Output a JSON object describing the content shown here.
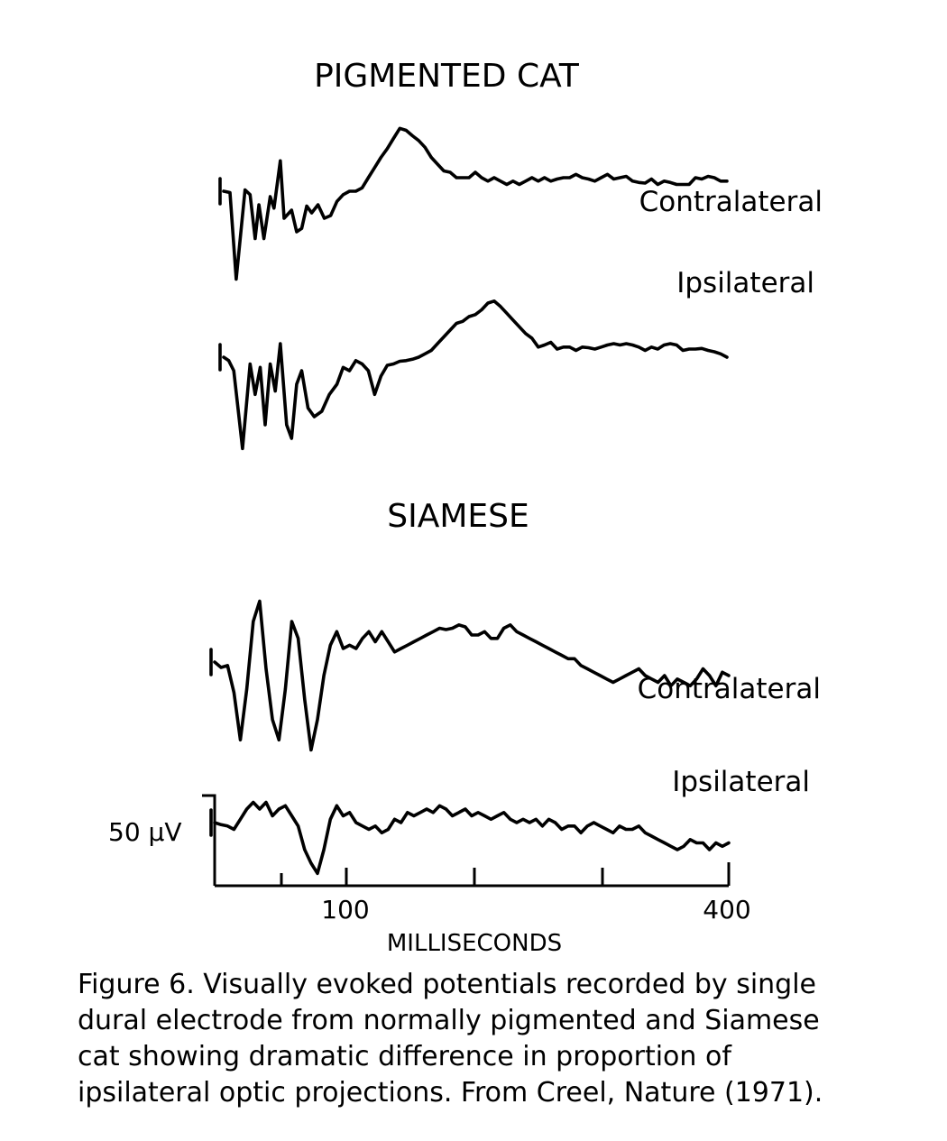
{
  "chart_data": [
    {
      "type": "line",
      "title": "PIGMENTED CAT",
      "xlabel": "MILLISECONDS",
      "xlim": [
        0,
        400
      ],
      "series": [
        {
          "name": "Contralateral",
          "x": [
            0,
            5,
            10,
            17,
            21,
            25,
            28,
            32,
            37,
            40,
            45,
            48,
            54,
            58,
            62,
            66,
            70,
            75,
            80,
            85,
            90,
            95,
            100,
            105,
            110,
            115,
            120,
            125,
            130,
            135,
            140,
            145,
            150,
            155,
            160,
            165,
            170,
            175,
            180,
            185,
            190,
            195,
            200,
            205,
            210,
            215,
            220,
            225,
            230,
            235,
            240,
            245,
            250,
            255,
            260,
            265,
            270,
            275,
            280,
            285,
            290,
            295,
            300,
            305,
            310,
            315,
            320,
            325,
            330,
            335,
            340,
            345,
            350,
            355,
            360,
            365,
            370,
            375,
            380,
            385,
            390,
            395,
            400
          ],
          "values": [
            0,
            -2,
            -130,
            2,
            -5,
            -70,
            -20,
            -70,
            -8,
            -25,
            45,
            -40,
            -28,
            -60,
            -55,
            -22,
            -32,
            -20,
            -40,
            -36,
            -15,
            -5,
            0,
            0,
            5,
            20,
            35,
            50,
            63,
            78,
            93,
            90,
            82,
            75,
            65,
            50,
            40,
            30,
            28,
            20,
            20,
            20,
            28,
            20,
            15,
            20,
            15,
            10,
            15,
            10,
            15,
            20,
            15,
            20,
            15,
            18,
            20,
            20,
            25,
            20,
            18,
            15,
            20,
            25,
            18,
            20,
            22,
            15,
            13,
            12,
            18,
            10,
            15,
            13,
            10,
            10,
            10,
            20,
            18,
            22,
            20,
            15,
            15
          ]
        },
        {
          "name": "Ipsilateral",
          "x": [
            0,
            4,
            8,
            15,
            21,
            25,
            29,
            33,
            37,
            41,
            45,
            50,
            54,
            58,
            62,
            67,
            72,
            78,
            84,
            90,
            95,
            100,
            105,
            110,
            115,
            120,
            125,
            130,
            135,
            140,
            145,
            150,
            155,
            160,
            165,
            170,
            175,
            180,
            185,
            190,
            195,
            200,
            205,
            210,
            215,
            220,
            225,
            230,
            235,
            240,
            245,
            250,
            255,
            260,
            265,
            270,
            275,
            280,
            285,
            290,
            295,
            300,
            305,
            310,
            315,
            320,
            325,
            330,
            335,
            340,
            345,
            350,
            355,
            360,
            365,
            370,
            375,
            380,
            385,
            390,
            395,
            400
          ],
          "values": [
            0,
            -5,
            -20,
            -135,
            -10,
            -55,
            -15,
            -100,
            -10,
            -50,
            20,
            -100,
            -120,
            -40,
            -20,
            -75,
            -88,
            -80,
            -55,
            -40,
            -15,
            -20,
            -5,
            -10,
            -20,
            -55,
            -28,
            -12,
            -10,
            -6,
            -5,
            -3,
            0,
            5,
            10,
            20,
            30,
            40,
            50,
            53,
            60,
            63,
            70,
            80,
            83,
            75,
            65,
            55,
            45,
            35,
            28,
            15,
            18,
            22,
            12,
            15,
            15,
            10,
            15,
            14,
            12,
            15,
            18,
            20,
            18,
            20,
            18,
            15,
            10,
            15,
            12,
            18,
            20,
            18,
            10,
            12,
            12,
            13,
            10,
            8,
            5,
            0
          ]
        }
      ]
    },
    {
      "type": "line",
      "title": "SIAMESE",
      "xlabel": "MILLISECONDS",
      "xlim": [
        0,
        400
      ],
      "xticks": [
        100,
        400
      ],
      "tick_labels": [
        "100",
        "400"
      ],
      "scale_bar": "50 µV",
      "series": [
        {
          "name": "Contralateral",
          "x": [
            0,
            5,
            10,
            15,
            20,
            25,
            30,
            35,
            40,
            45,
            50,
            55,
            60,
            65,
            70,
            75,
            80,
            85,
            90,
            95,
            100,
            105,
            110,
            115,
            120,
            125,
            130,
            135,
            140,
            145,
            150,
            155,
            160,
            165,
            170,
            175,
            180,
            185,
            190,
            195,
            200,
            205,
            210,
            215,
            220,
            225,
            230,
            235,
            240,
            245,
            250,
            255,
            260,
            265,
            270,
            275,
            280,
            285,
            290,
            295,
            300,
            305,
            310,
            315,
            320,
            325,
            330,
            335,
            340,
            345,
            350,
            355,
            360,
            365,
            370,
            375,
            380,
            385,
            390,
            395,
            400
          ],
          "values": [
            0,
            -8,
            -5,
            -45,
            -115,
            -40,
            60,
            90,
            -10,
            -85,
            -115,
            -40,
            60,
            35,
            -55,
            -130,
            -85,
            -20,
            25,
            45,
            20,
            25,
            20,
            35,
            45,
            30,
            45,
            30,
            15,
            20,
            25,
            30,
            35,
            40,
            45,
            50,
            48,
            50,
            55,
            52,
            40,
            40,
            45,
            35,
            35,
            50,
            55,
            45,
            40,
            35,
            30,
            25,
            20,
            15,
            10,
            5,
            5,
            -5,
            -10,
            -15,
            -20,
            -25,
            -30,
            -25,
            -20,
            -15,
            -10,
            -20,
            -25,
            -30,
            -20,
            -35,
            -25,
            -30,
            -35,
            -25,
            -10,
            -20,
            -35,
            -15,
            -20
          ]
        },
        {
          "name": "Ipsilateral",
          "x": [
            0,
            5,
            10,
            15,
            20,
            25,
            30,
            35,
            40,
            45,
            50,
            55,
            60,
            65,
            70,
            75,
            80,
            85,
            90,
            95,
            100,
            105,
            110,
            115,
            120,
            125,
            130,
            135,
            140,
            145,
            150,
            155,
            160,
            165,
            170,
            175,
            180,
            185,
            190,
            195,
            200,
            205,
            210,
            215,
            220,
            225,
            230,
            235,
            240,
            245,
            250,
            255,
            260,
            265,
            270,
            275,
            280,
            285,
            290,
            295,
            300,
            305,
            310,
            315,
            320,
            325,
            330,
            335,
            340,
            345,
            350,
            355,
            360,
            365,
            370,
            375,
            380,
            385,
            390,
            395,
            400
          ],
          "values": [
            0,
            -3,
            -5,
            -10,
            5,
            20,
            30,
            20,
            30,
            10,
            20,
            25,
            10,
            -5,
            -40,
            -60,
            -75,
            -40,
            5,
            25,
            10,
            15,
            0,
            -5,
            -10,
            -5,
            -15,
            -10,
            5,
            0,
            15,
            10,
            15,
            20,
            15,
            25,
            20,
            10,
            15,
            20,
            10,
            15,
            10,
            5,
            10,
            15,
            5,
            0,
            5,
            0,
            5,
            -5,
            5,
            0,
            -10,
            -5,
            -5,
            -15,
            -5,
            0,
            -5,
            -10,
            -15,
            -5,
            -10,
            -10,
            -5,
            -15,
            -20,
            -25,
            -30,
            -35,
            -40,
            -35,
            -25,
            -30,
            -30,
            -40,
            -30,
            -35,
            -30
          ]
        }
      ]
    }
  ],
  "caption": "Figure 6. Visually evoked potentials recorded by single\ndural electrode from normally pigmented and Siamese\ncat showing dramatic difference in proportion of\nipsilateral optic projections.  From Creel, Nature (1971)."
}
